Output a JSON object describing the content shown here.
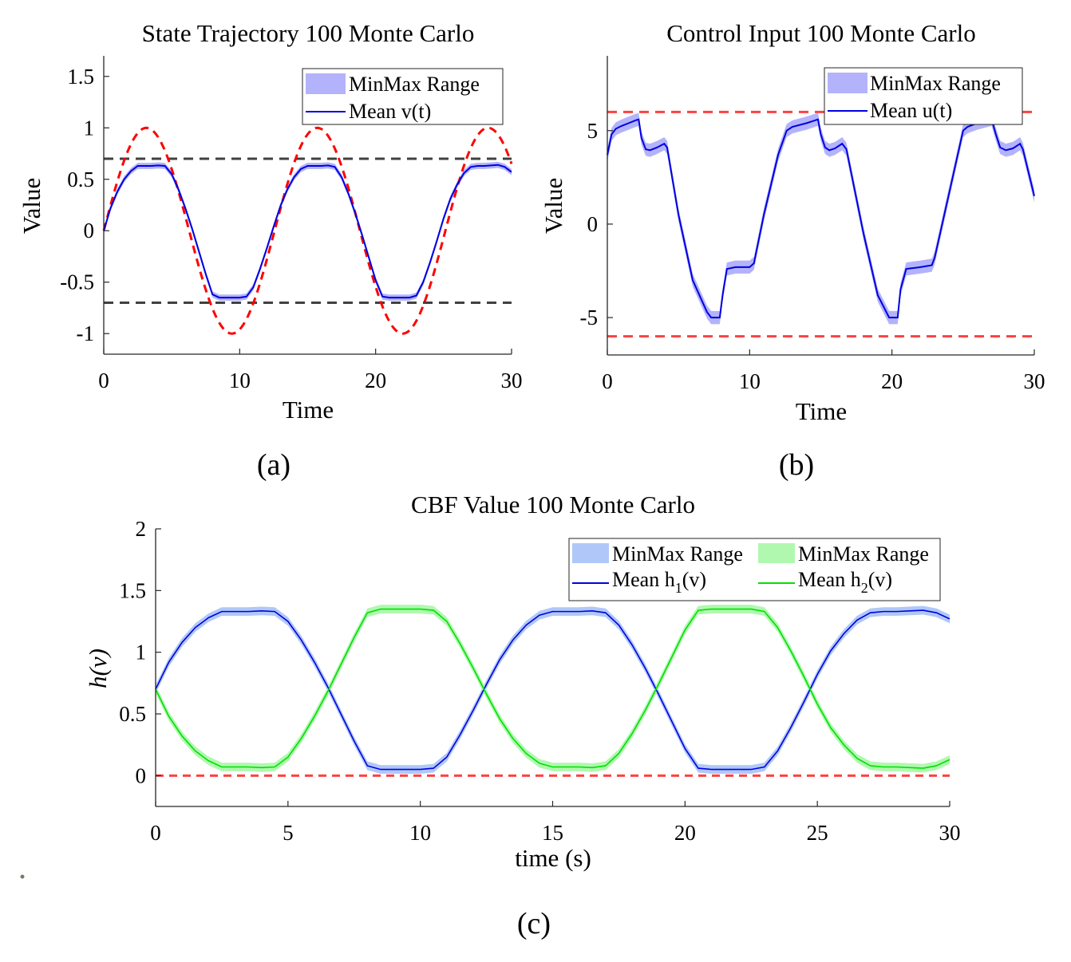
{
  "figure": {
    "panel_labels": [
      "(a)",
      "(b)",
      "(c)"
    ]
  },
  "chart_data": [
    {
      "id": "a",
      "type": "line",
      "title": "State Trajectory 100 Monte Carlo",
      "xlabel": "Time",
      "ylabel": "Value",
      "xlim": [
        0,
        30
      ],
      "ylim": [
        -1.2,
        1.7
      ],
      "xticks": [
        0,
        10,
        20,
        30
      ],
      "xtick_labels": [
        "0",
        "10",
        "20",
        "30"
      ],
      "yticks": [
        -1,
        -0.5,
        0,
        0.5,
        1,
        1.5
      ],
      "ytick_labels": [
        "-1",
        "-0.5",
        "0",
        "0.5",
        "1",
        "1.5"
      ],
      "grid": false,
      "legend": {
        "placement": "top-right",
        "entries": [
          {
            "label": "MinMax Range",
            "kind": "patch",
            "color": "#b3b3fb"
          },
          {
            "label": "Mean v(t)",
            "kind": "line",
            "color": "#0000e0"
          }
        ]
      },
      "x": [
        0,
        0.5,
        1,
        1.5,
        2,
        2.5,
        3,
        3.5,
        4,
        4.5,
        5,
        5.5,
        6,
        6.5,
        7,
        7.5,
        8,
        8.5,
        9,
        9.5,
        10,
        10.5,
        11,
        11.5,
        12,
        12.5,
        13,
        13.5,
        14,
        14.5,
        15,
        15.5,
        16,
        16.5,
        17,
        17.5,
        18,
        18.5,
        19,
        19.5,
        20,
        20.5,
        21,
        21.5,
        22,
        22.5,
        23,
        23.5,
        24,
        24.5,
        25,
        25.5,
        26,
        26.5,
        27,
        27.5,
        28,
        28.5,
        29,
        29.5,
        30
      ],
      "series": [
        {
          "name": "Mean v(t)",
          "color": "#0000e0",
          "values": [
            0,
            0.22,
            0.38,
            0.5,
            0.58,
            0.63,
            0.63,
            0.63,
            0.635,
            0.63,
            0.55,
            0.4,
            0.22,
            0.02,
            -0.2,
            -0.42,
            -0.62,
            -0.65,
            -0.65,
            -0.65,
            -0.65,
            -0.64,
            -0.55,
            -0.37,
            -0.17,
            0.04,
            0.24,
            0.4,
            0.52,
            0.6,
            0.63,
            0.63,
            0.63,
            0.635,
            0.62,
            0.52,
            0.36,
            0.17,
            -0.04,
            -0.26,
            -0.48,
            -0.64,
            -0.65,
            -0.65,
            -0.65,
            -0.65,
            -0.63,
            -0.5,
            -0.31,
            -0.1,
            0.12,
            0.31,
            0.45,
            0.56,
            0.62,
            0.63,
            0.63,
            0.635,
            0.64,
            0.62,
            0.57
          ]
        },
        {
          "name": "MinMax Range",
          "kind": "band",
          "color": "#b3b3fb",
          "half_width": 0.03
        },
        {
          "name": "Reference",
          "kind": "dashed",
          "color": "#ff0000",
          "formula": "sin(0.5 t)"
        },
        {
          "name": "Upper bound",
          "kind": "dashed",
          "color": "#404040",
          "value": 0.7
        },
        {
          "name": "Lower bound",
          "kind": "dashed",
          "color": "#404040",
          "value": -0.7
        }
      ]
    },
    {
      "id": "b",
      "type": "line",
      "title": "Control Input 100 Monte Carlo",
      "xlabel": "Time",
      "ylabel": "Value",
      "xlim": [
        0,
        30
      ],
      "ylim": [
        -7,
        9
      ],
      "xticks": [
        0,
        10,
        20,
        30
      ],
      "xtick_labels": [
        "0",
        "10",
        "20",
        "30"
      ],
      "yticks": [
        -5,
        0,
        5
      ],
      "ytick_labels": [
        "-5",
        "0",
        "5"
      ],
      "grid": false,
      "legend": {
        "placement": "top-right",
        "entries": [
          {
            "label": "MinMax Range",
            "kind": "patch",
            "color": "#b3b3fb"
          },
          {
            "label": "Mean u(t)",
            "kind": "line",
            "color": "#0000e0"
          }
        ]
      },
      "x": [
        0,
        0.3,
        0.6,
        1,
        1.5,
        2,
        2.2,
        2.4,
        2.7,
        3,
        3.5,
        4,
        4.2,
        5,
        6,
        7,
        7.3,
        7.9,
        8.1,
        8.4,
        9,
        10,
        10.3,
        11,
        12,
        12.6,
        13,
        14,
        14.8,
        15,
        15.3,
        15.6,
        16,
        16.5,
        16.8,
        18,
        19,
        19.8,
        20.4,
        20.6,
        21,
        22,
        22.8,
        23,
        24,
        25,
        25.3,
        26,
        27,
        27.3,
        27.6,
        28,
        28.5,
        29,
        29.2,
        30
      ],
      "series": [
        {
          "name": "Mean u(t)",
          "color": "#0000e0",
          "values": [
            3.7,
            4.8,
            5.1,
            5.25,
            5.4,
            5.55,
            5.6,
            4.6,
            4.0,
            3.95,
            4.1,
            4.3,
            4.1,
            0.5,
            -3.0,
            -4.7,
            -5.0,
            -5.0,
            -3.8,
            -2.4,
            -2.3,
            -2.3,
            -2.1,
            0.5,
            3.7,
            5.0,
            5.2,
            5.4,
            5.6,
            4.8,
            4.1,
            3.95,
            4.05,
            4.3,
            4.0,
            -0.5,
            -3.8,
            -5.0,
            -5.0,
            -3.5,
            -2.4,
            -2.3,
            -2.2,
            -1.8,
            1.6,
            5.0,
            5.2,
            5.4,
            5.6,
            4.8,
            4.1,
            3.95,
            4.05,
            4.3,
            4.0,
            1.5
          ]
        },
        {
          "name": "MinMax Range",
          "kind": "band",
          "color": "#b3b3fb",
          "half_width": 0.35
        },
        {
          "name": "Upper limit",
          "kind": "dashed",
          "color": "#ff4040",
          "value": 6
        },
        {
          "name": "Lower limit",
          "kind": "dashed",
          "color": "#ff4040",
          "value": -6
        }
      ]
    },
    {
      "id": "c",
      "type": "line",
      "title": "CBF Value 100 Monte Carlo",
      "xlabel": "time (s)",
      "ylabel": "h(v)",
      "xlim": [
        0,
        30
      ],
      "ylim": [
        -0.25,
        2
      ],
      "xticks": [
        0,
        5,
        10,
        15,
        20,
        25,
        30
      ],
      "xtick_labels": [
        "0",
        "5",
        "10",
        "15",
        "20",
        "25",
        "30"
      ],
      "yticks": [
        0,
        0.5,
        1,
        1.5,
        2
      ],
      "ytick_labels": [
        "0",
        "0.5",
        "1",
        "1.5",
        "2"
      ],
      "grid": false,
      "legend": {
        "placement": "top-right",
        "entries": [
          {
            "label": "MinMax Range",
            "kind": "patch",
            "color": "#b0c8f8"
          },
          {
            "label": "MinMax Range",
            "kind": "patch",
            "color": "#b0f8b0"
          },
          {
            "label": "Mean h",
            "sub": "1",
            "suffix": "(v)",
            "kind": "line",
            "color": "#0000e0"
          },
          {
            "label": "Mean h",
            "sub": "2",
            "suffix": "(v)",
            "kind": "line",
            "color": "#00e000"
          }
        ]
      },
      "x": [
        0,
        0.5,
        1,
        1.5,
        2,
        2.5,
        3,
        3.5,
        4,
        4.5,
        5,
        5.5,
        6,
        6.5,
        7,
        7.5,
        8,
        8.5,
        9,
        9.5,
        10,
        10.5,
        11,
        11.5,
        12,
        12.5,
        13,
        13.5,
        14,
        14.5,
        15,
        15.5,
        16,
        16.5,
        17,
        17.5,
        18,
        18.5,
        19,
        19.5,
        20,
        20.5,
        21,
        21.5,
        22,
        22.5,
        23,
        23.5,
        24,
        24.5,
        25,
        25.5,
        26,
        26.5,
        27,
        27.5,
        28,
        28.5,
        29,
        29.5,
        30
      ],
      "series": [
        {
          "name": "Mean h1(v)",
          "color": "#0000e0",
          "band_color": "#b0c8f8",
          "half_width": 0.035,
          "values": [
            0.7,
            0.92,
            1.08,
            1.2,
            1.28,
            1.33,
            1.33,
            1.33,
            1.335,
            1.33,
            1.25,
            1.1,
            0.92,
            0.72,
            0.5,
            0.28,
            0.08,
            0.05,
            0.05,
            0.05,
            0.05,
            0.06,
            0.15,
            0.33,
            0.53,
            0.74,
            0.94,
            1.1,
            1.22,
            1.3,
            1.33,
            1.33,
            1.33,
            1.335,
            1.32,
            1.22,
            1.06,
            0.87,
            0.66,
            0.44,
            0.22,
            0.06,
            0.05,
            0.05,
            0.05,
            0.05,
            0.07,
            0.2,
            0.39,
            0.6,
            0.82,
            1.01,
            1.15,
            1.26,
            1.32,
            1.33,
            1.33,
            1.335,
            1.34,
            1.32,
            1.27
          ]
        },
        {
          "name": "Mean h2(v)",
          "color": "#00e000",
          "band_color": "#b0f8b0",
          "half_width": 0.035,
          "values": [
            0.7,
            0.48,
            0.32,
            0.2,
            0.12,
            0.07,
            0.07,
            0.07,
            0.065,
            0.07,
            0.15,
            0.3,
            0.48,
            0.68,
            0.9,
            1.12,
            1.32,
            1.35,
            1.35,
            1.35,
            1.35,
            1.34,
            1.25,
            1.07,
            0.87,
            0.66,
            0.46,
            0.3,
            0.18,
            0.1,
            0.07,
            0.07,
            0.07,
            0.065,
            0.08,
            0.18,
            0.34,
            0.53,
            0.74,
            0.96,
            1.18,
            1.34,
            1.35,
            1.35,
            1.35,
            1.35,
            1.33,
            1.2,
            1.01,
            0.8,
            0.58,
            0.39,
            0.25,
            0.14,
            0.08,
            0.07,
            0.07,
            0.065,
            0.06,
            0.08,
            0.13
          ]
        },
        {
          "name": "Safety boundary",
          "kind": "dashed",
          "color": "#ff4040",
          "value": 0
        }
      ]
    }
  ]
}
